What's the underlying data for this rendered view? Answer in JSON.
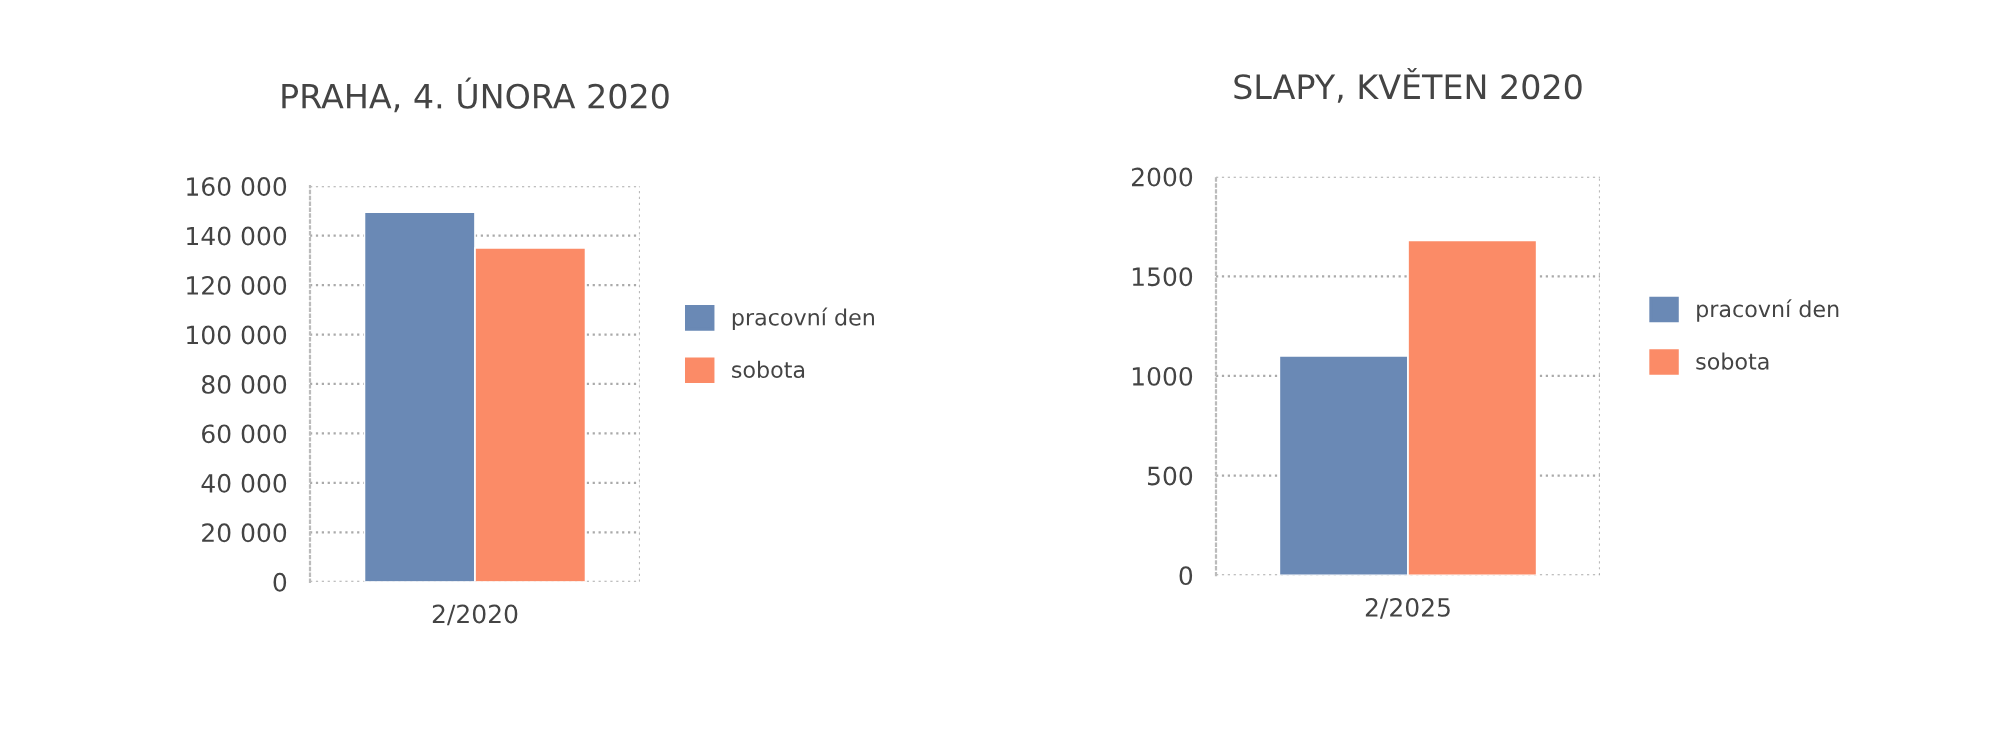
{
  "chart_data": [
    {
      "type": "bar",
      "title": "PRAHA, 4. ÚNORA 2020",
      "categories": [
        "2/2020"
      ],
      "series": [
        {
          "name": "pracovní den",
          "color": "#6a89b5",
          "values": [
            149500
          ]
        },
        {
          "name": "sobota",
          "color": "#fb8b67",
          "values": [
            135000
          ]
        }
      ],
      "ylim": [
        0,
        160000
      ],
      "yticks": [
        0,
        {
          "value": 20000,
          "label": "20 000"
        },
        {
          "value": 40000,
          "label": "40 000"
        },
        {
          "value": 60000,
          "label": "60 000"
        },
        {
          "value": 80000,
          "label": "80 000"
        },
        {
          "value": 100000,
          "label": "100 000"
        },
        {
          "value": 120000,
          "label": "120 000"
        },
        {
          "value": 140000,
          "label": "140 000"
        },
        {
          "value": 160000,
          "label": "160 000"
        }
      ],
      "grid": true,
      "legend": "right"
    },
    {
      "type": "bar",
      "title": "SLAPY, KVĚTEN 2020",
      "categories": [
        "2/2025"
      ],
      "series": [
        {
          "name": "pracovní den",
          "color": "#6a89b5",
          "values": [
            1100
          ]
        },
        {
          "name": "sobota",
          "color": "#fb8b67",
          "values": [
            1680
          ]
        }
      ],
      "ylim": [
        0,
        2000
      ],
      "yticks": [
        0,
        500,
        1000,
        1500,
        2000
      ],
      "grid": true,
      "legend": "right"
    }
  ]
}
